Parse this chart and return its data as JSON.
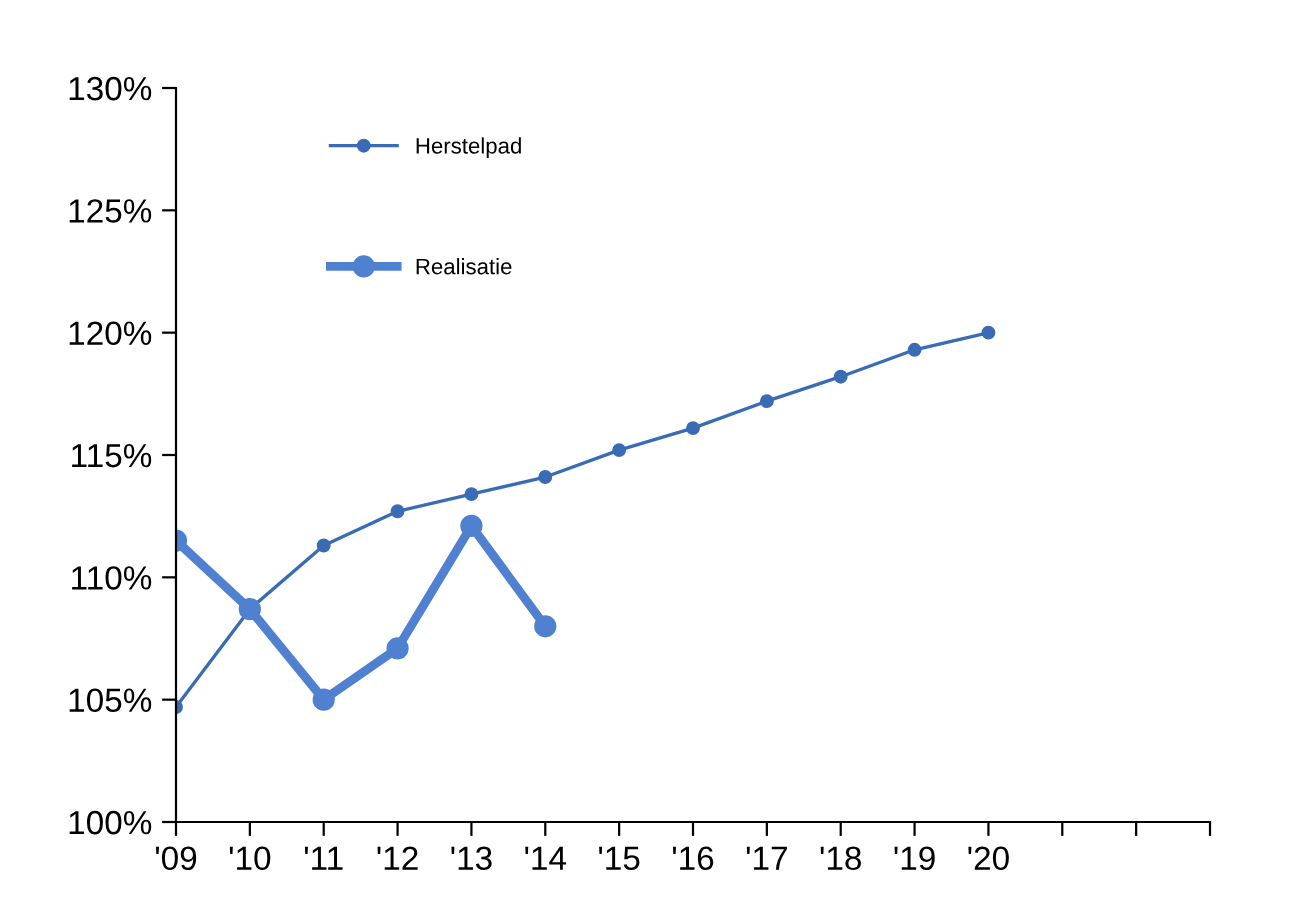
{
  "chart_data": {
    "type": "line",
    "categories": [
      "'09",
      "'10",
      "'11",
      "'12",
      "'13",
      "'14",
      "'15",
      "'16",
      "'17",
      "'18",
      "'19",
      "'20",
      null,
      null,
      null
    ],
    "series": [
      {
        "name": "Herstelpad",
        "color": "#3a6bb5",
        "values": [
          104.7,
          108.7,
          111.3,
          112.7,
          113.4,
          114.1,
          115.2,
          116.1,
          117.2,
          118.2,
          119.3,
          120.0,
          null,
          null,
          null
        ]
      },
      {
        "name": "Realisatie",
        "color": "#4f81d0",
        "values": [
          111.5,
          108.7,
          105.0,
          107.1,
          112.1,
          108.0,
          null,
          null,
          null,
          null,
          null,
          null,
          null,
          null,
          null
        ]
      }
    ],
    "ylim": [
      100,
      130
    ],
    "yticks": [
      {
        "value": 100,
        "label": "100%"
      },
      {
        "value": 105,
        "label": "105%"
      },
      {
        "value": 110,
        "label": "110%"
      },
      {
        "value": 115,
        "label": "115%"
      },
      {
        "value": 120,
        "label": "120%"
      },
      {
        "value": 125,
        "label": "125%"
      },
      {
        "value": 130,
        "label": "130%"
      }
    ],
    "grid": false,
    "legend": "top left",
    "marker": "circle"
  }
}
